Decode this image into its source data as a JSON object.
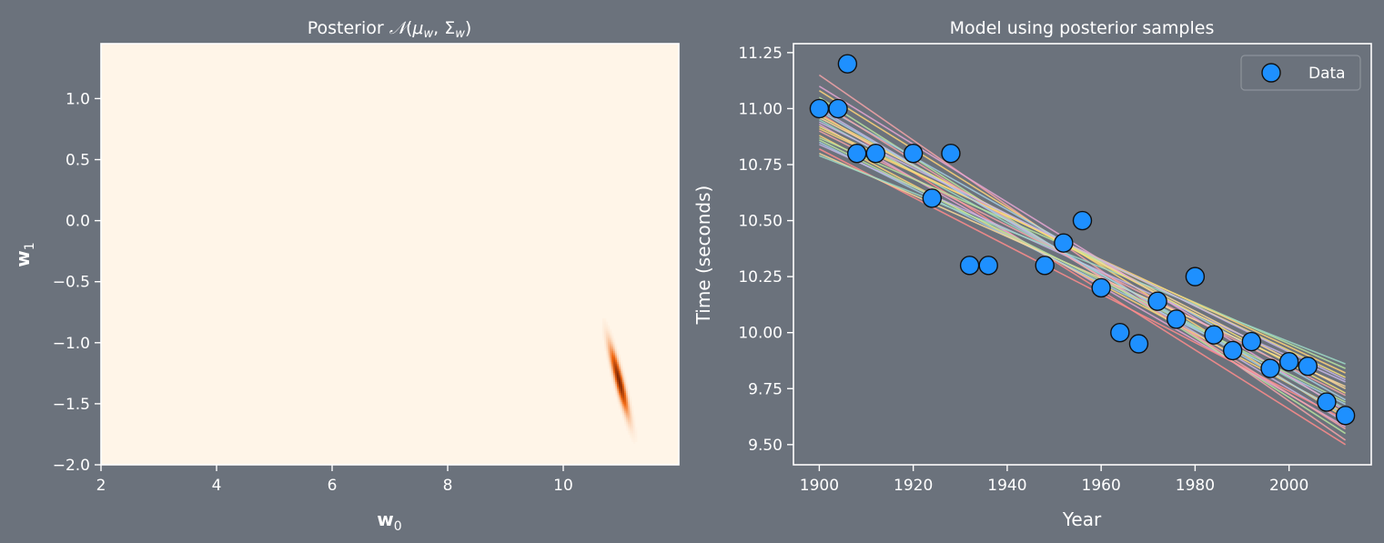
{
  "chart_data": [
    {
      "type": "heatmap",
      "title": "Posterior 𝒩(μ_w, Σ_w)",
      "title_parts": {
        "prefix": "Posterior ",
        "normal": "𝒩",
        "mu": "μ",
        "w1": "w",
        "sep": ", ",
        "sigma": "Σ",
        "w2": "w"
      },
      "xlabel": "w",
      "xlabel_sub": "0",
      "ylabel": "w",
      "ylabel_sub": "1",
      "xlim": [
        2,
        12
      ],
      "ylim": [
        -2.0,
        1.45
      ],
      "xticks": [
        2,
        4,
        6,
        8,
        10
      ],
      "xtick_labels": [
        "2",
        "4",
        "6",
        "8",
        "10"
      ],
      "yticks": [
        -2.0,
        -1.5,
        -1.0,
        -0.5,
        0.0,
        0.5,
        1.0
      ],
      "ytick_labels": [
        "−2.0",
        "−1.5",
        "−1.0",
        "−0.5",
        "0.0",
        "0.5",
        "1.0"
      ],
      "colormap": "Oranges",
      "background_color": "#fff5e8",
      "peak_color": "#7f2704",
      "density_mean": [
        10.95,
        -1.3
      ],
      "density_sd": [
        0.1,
        0.17
      ],
      "density_corr": -0.9
    },
    {
      "type": "line",
      "title": "Model using posterior samples",
      "xlabel": "Year",
      "ylabel": "Time (seconds)",
      "xlim": [
        1894.5,
        2017.5
      ],
      "ylim": [
        9.41,
        11.29
      ],
      "xticks": [
        1900,
        1920,
        1940,
        1960,
        1980,
        2000
      ],
      "xtick_labels": [
        "1900",
        "1920",
        "1940",
        "1960",
        "1980",
        "2000"
      ],
      "yticks": [
        9.5,
        9.75,
        10.0,
        10.25,
        10.5,
        10.75,
        11.0,
        11.25
      ],
      "ytick_labels": [
        "9.50",
        "9.75",
        "10.00",
        "10.25",
        "10.50",
        "10.75",
        "11.00",
        "11.25"
      ],
      "legend": [
        "Data"
      ],
      "legend_position": "top-right",
      "point_color": "#1e90ff",
      "line_colors": [
        "#f4a3a8",
        "#ffd479",
        "#b9e4a0",
        "#a6cee3",
        "#c7b6e6",
        "#ff8c8c",
        "#fdd99b",
        "#9ed9c5",
        "#e6a6d2",
        "#f7e07a"
      ],
      "sample_year_range": [
        1900,
        2012
      ],
      "sample_lines_start": [
        11.15,
        11.08,
        11.05,
        11.02,
        11.0,
        10.98,
        10.96,
        10.95,
        10.93,
        10.92,
        10.9,
        10.88,
        10.87,
        10.85,
        10.84,
        10.82,
        10.8,
        10.79,
        11.1,
        10.97,
        11.03,
        10.91,
        10.86,
        10.99,
        10.94
      ],
      "sample_lines_end": [
        9.52,
        9.62,
        9.55,
        9.7,
        9.6,
        9.5,
        9.75,
        9.66,
        9.58,
        9.8,
        9.72,
        9.64,
        9.84,
        9.68,
        9.78,
        9.61,
        9.76,
        9.86,
        9.65,
        9.73,
        9.57,
        9.82,
        9.69,
        9.63,
        9.79
      ],
      "series": [
        {
          "name": "Data",
          "x": [
            1900,
            1904,
            1906,
            1908,
            1912,
            1920,
            1924,
            1928,
            1932,
            1936,
            1948,
            1952,
            1956,
            1960,
            1964,
            1968,
            1972,
            1976,
            1980,
            1984,
            1988,
            1992,
            1996,
            2000,
            2004,
            2008,
            2012
          ],
          "y": [
            11.0,
            11.0,
            11.2,
            10.8,
            10.8,
            10.8,
            10.6,
            10.8,
            10.3,
            10.3,
            10.3,
            10.4,
            10.5,
            10.2,
            10.0,
            9.95,
            10.14,
            10.06,
            10.25,
            9.99,
            9.92,
            9.96,
            9.84,
            9.87,
            9.85,
            9.69,
            9.63
          ]
        }
      ]
    }
  ]
}
